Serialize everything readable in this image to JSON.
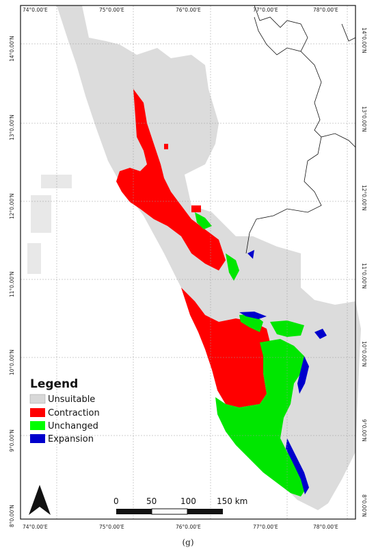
{
  "map": {
    "top_labels": [
      "74°0.00'E",
      "75°0.00'E",
      "76°0.00'E",
      "77°0.00'E",
      "78°0.00'E"
    ],
    "bottom_labels": [
      "74°0.00'E",
      "75°0.00'E",
      "76°0.00'E",
      "77°0.00'E",
      "78°0.00'E"
    ],
    "left_labels": [
      "14°0.00'N",
      "13°0.00'N",
      "12°0.00'N",
      "11°0.00'N",
      "10°0.00'N",
      "9°0.00'N",
      "8°0.00'N"
    ],
    "right_labels": [
      "14°0.00'N",
      "13°0.00'N",
      "12°0.00'N",
      "11°0.00'N",
      "10°0.00'N",
      "9°0.00'N",
      "8°0.00'N"
    ]
  },
  "legend": {
    "title": "Legend",
    "items": [
      {
        "label": "Unsuitable",
        "color": "#d8d8d8"
      },
      {
        "label": "Contraction",
        "color": "#ff0000"
      },
      {
        "label": "Unchanged",
        "color": "#00ff00"
      },
      {
        "label": "Expansion",
        "color": "#0000cc"
      }
    ]
  },
  "scale_bar": {
    "labels": [
      "0",
      "50",
      "100",
      "150 km"
    ]
  },
  "north_arrow": {
    "icon": "north-arrow-icon"
  },
  "caption": "(g)"
}
